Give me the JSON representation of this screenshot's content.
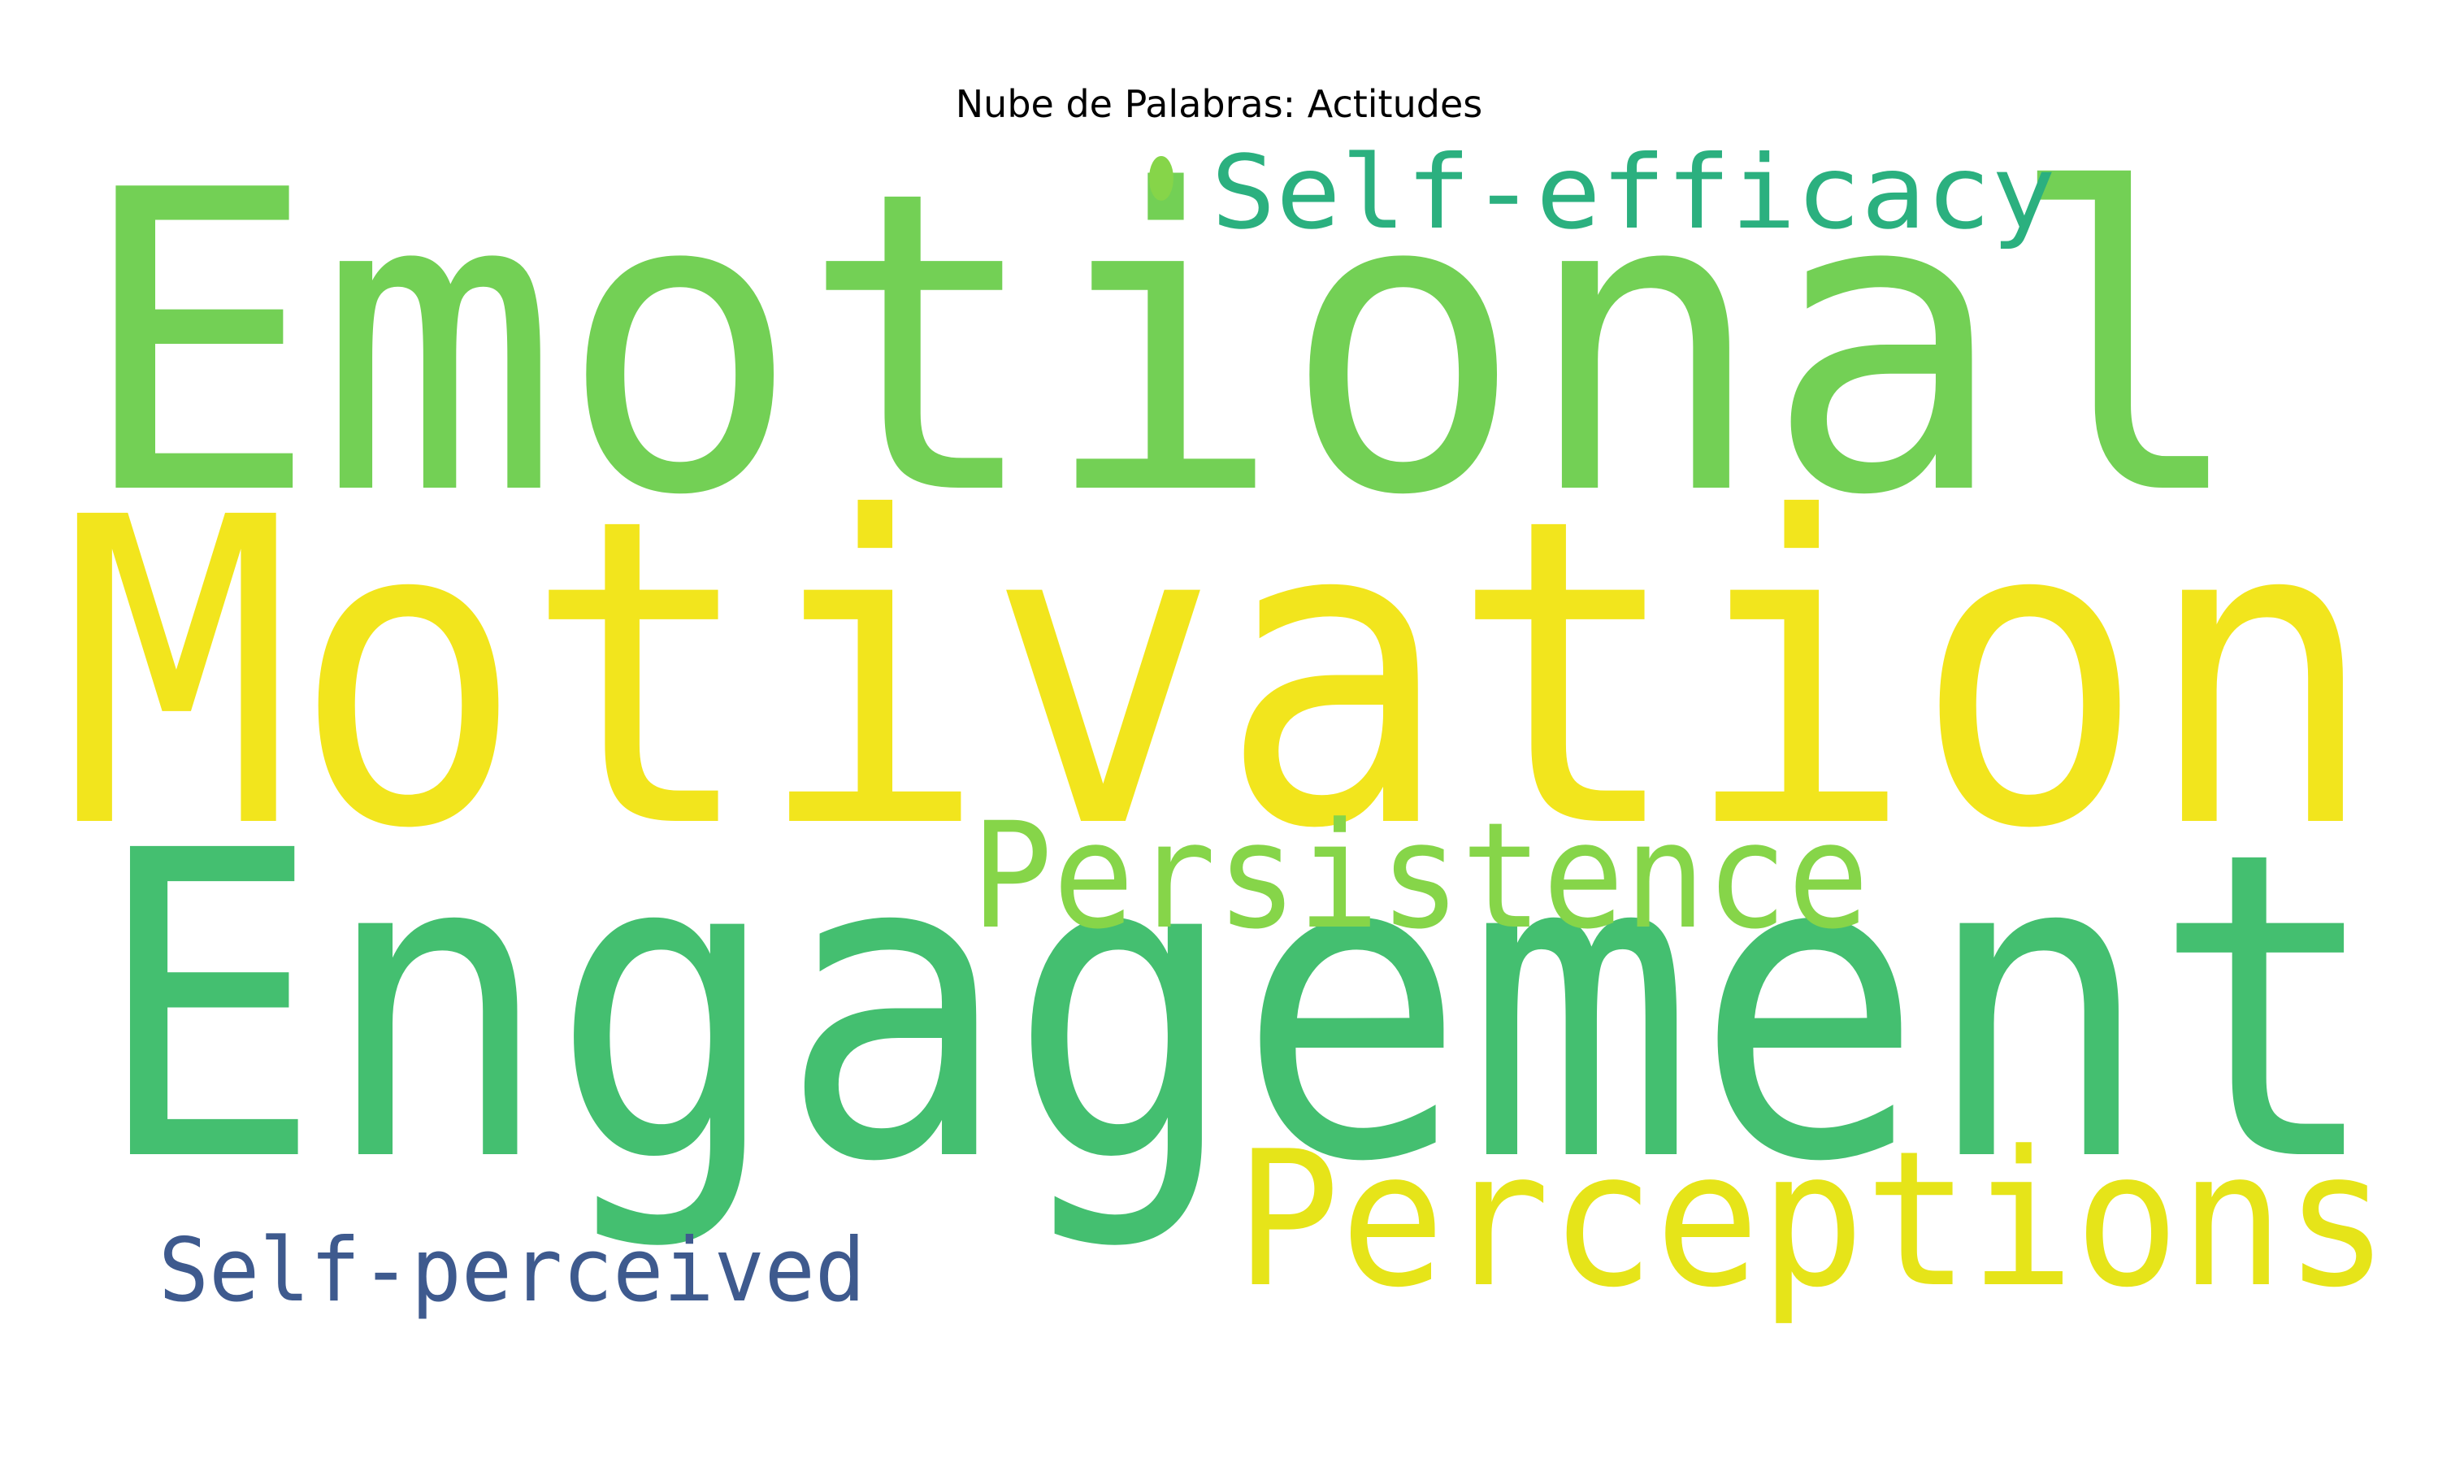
{
  "chart_data": {
    "type": "wordcloud",
    "title": "Nube de Palabras: Actitudes",
    "words": [
      {
        "text": "Emotional",
        "color": "#73D055"
      },
      {
        "text": "Motivation",
        "color": "#F2E51D"
      },
      {
        "text": "Engagement",
        "color": "#44BF70"
      },
      {
        "text": "Persistence",
        "color": "#86D549"
      },
      {
        "text": "Perceptions",
        "color": "#E6E419"
      },
      {
        "text": "Self‐efficacy",
        "color": "#2BB07F"
      },
      {
        "text": "Self‐perceived",
        "color": "#3E5A8E"
      },
      {
        "text": "•",
        "color": "#86D549"
      }
    ]
  }
}
